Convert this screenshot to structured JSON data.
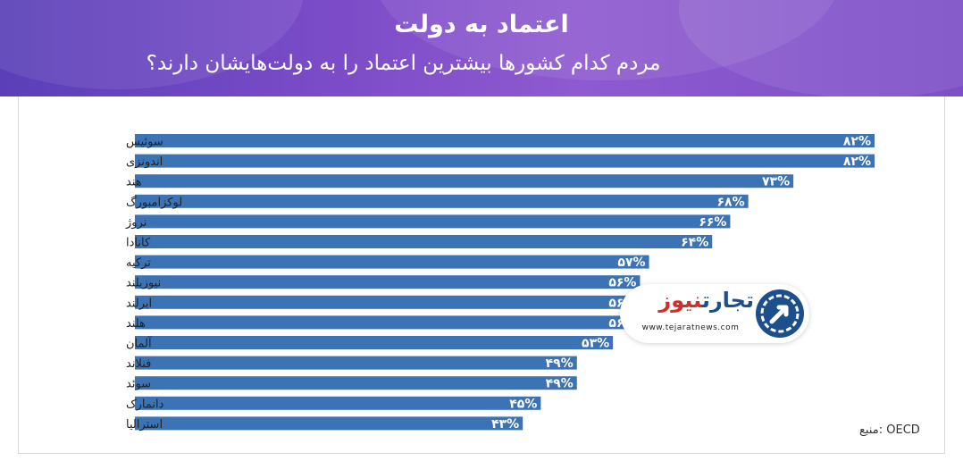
{
  "header": {
    "title": "اعتماد به دولت",
    "subtitle": "مردم کدام کشورها بیشترین اعتماد را به دولت‌هایشان دارند؟"
  },
  "source": "منبع: OECD",
  "logo": {
    "name_part1": "تجارت",
    "name_part2": "نیوز",
    "url": "www.tejaratnews.com"
  },
  "colors": {
    "bar": "#3b73b5",
    "header_start": "#5a3fb8",
    "header_end": "#8f5ad0"
  },
  "chart_data": {
    "type": "bar",
    "orientation": "horizontal",
    "categories": [
      "سوئیس",
      "اندونزی",
      "هند",
      "لوکزامبورگ",
      "نروژ",
      "کانادا",
      "ترکیه",
      "نیوزیلند",
      "ایرلند",
      "هلند",
      "آلمان",
      "فنلاند",
      "سوئد",
      "دانمارک",
      "استرالیا"
    ],
    "values": [
      82,
      82,
      73,
      68,
      66,
      64,
      57,
      56,
      56,
      56,
      53,
      49,
      49,
      45,
      43
    ],
    "value_labels": [
      "۸۲%",
      "۸۲%",
      "۷۳%",
      "۶۸%",
      "۶۶%",
      "۶۴%",
      "۵۷%",
      "۵۶%",
      "۵۶%",
      "۵۶%",
      "۵۳%",
      "۴۹%",
      "۴۹%",
      "۴۵%",
      "۴۳%"
    ],
    "unit": "%",
    "title": "اعتماد به دولت",
    "grid": false,
    "legend": "none"
  }
}
